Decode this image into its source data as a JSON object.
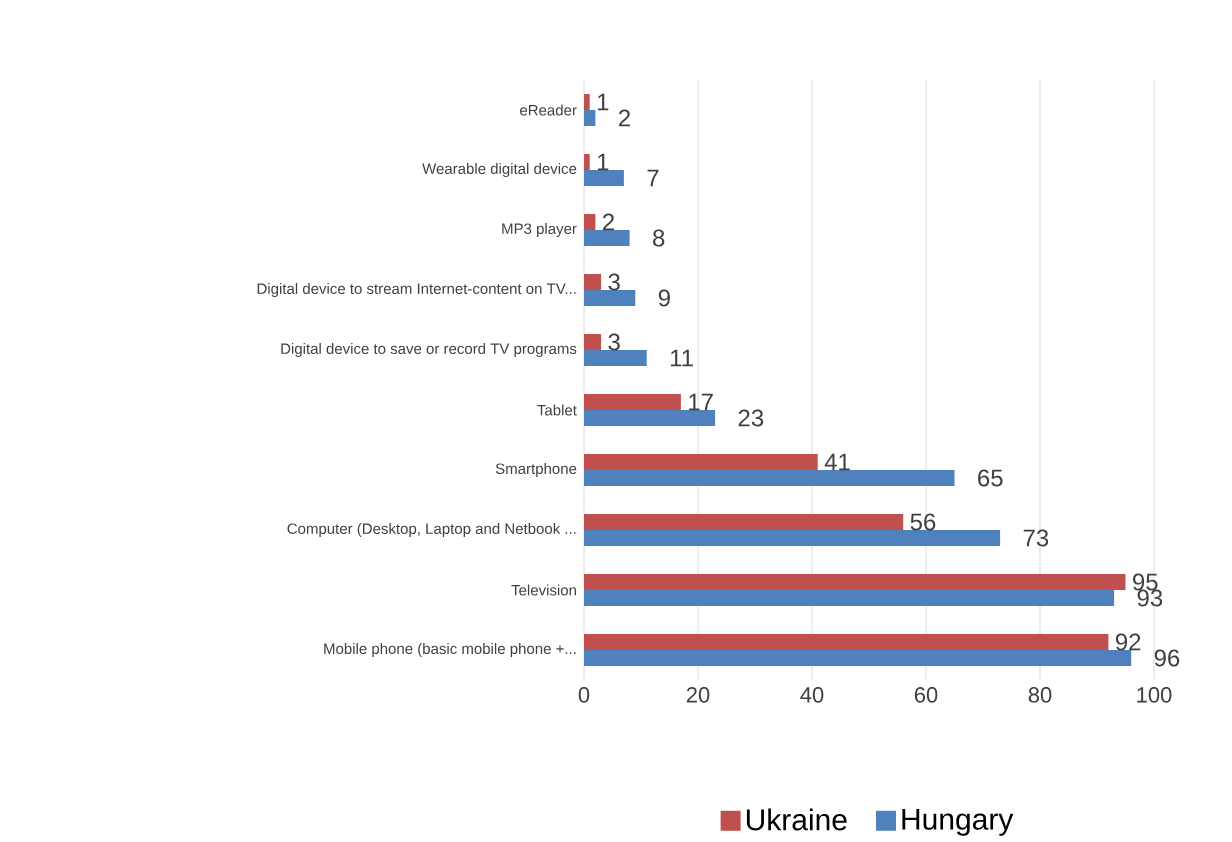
{
  "chart_data": {
    "type": "bar",
    "orientation": "horizontal",
    "categories": [
      "eReader",
      "Wearable digital device",
      "MP3 player",
      "Digital device to stream Internet-content on TV...",
      "Digital device to save or record TV programs",
      "Tablet",
      "Smartphone",
      "Computer (Desktop, Laptop and Netbook ...",
      "Television",
      "Mobile phone (basic mobile phone +..."
    ],
    "series": [
      {
        "name": "Ukraine",
        "color": "#c0504d",
        "values": [
          1,
          1,
          2,
          3,
          3,
          17,
          41,
          56,
          95,
          92
        ]
      },
      {
        "name": "Hungary",
        "color": "#4f81bd",
        "values": [
          2,
          7,
          8,
          9,
          11,
          23,
          65,
          73,
          93,
          96
        ]
      }
    ],
    "xlim": [
      0,
      100
    ],
    "xticks": [
      0,
      20,
      40,
      60,
      80,
      100
    ],
    "grid": "x",
    "legend": "bottom",
    "data_labels": true
  }
}
